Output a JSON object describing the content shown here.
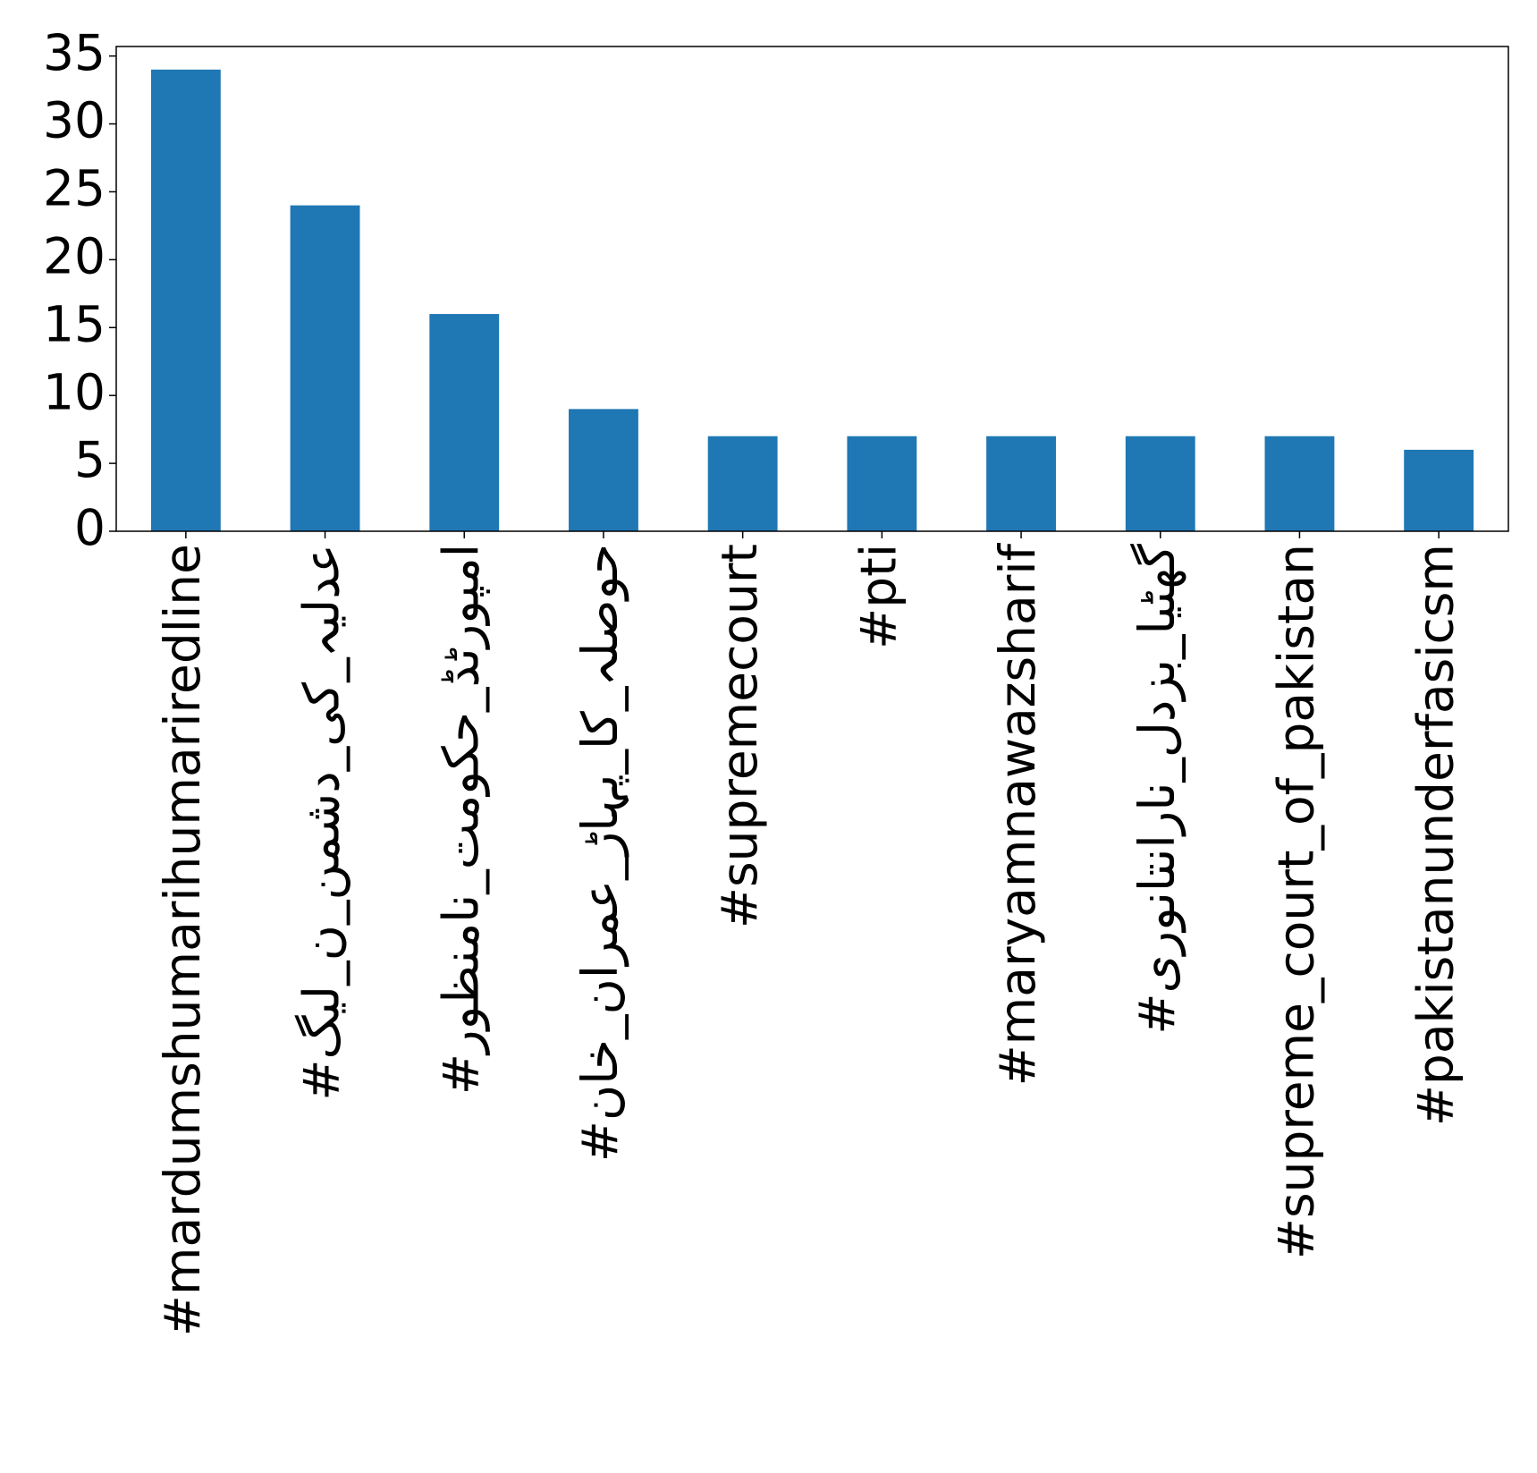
{
  "chart_data": {
    "type": "bar",
    "categories": [
      "#mardumshumarihumariredline",
      "#عدلیہ_کی_دشمن_ن_لیگ",
      "#امپورٹڈ_حکومت_نامنظور",
      "#حوصلہ_کا_پہاڑ_عمران_خان",
      "#supremecourt",
      "#pti",
      "#maryamnawazsharif",
      "#گھٹیا_بزدل_نارانتانوری",
      "#supreme_court_of_pakistan",
      "#pakistanunderfasicsm"
    ],
    "values": [
      34,
      24,
      16,
      9,
      7,
      7,
      7,
      7,
      7,
      6
    ],
    "color": "#1f77b4",
    "ylim": [
      0,
      35.7
    ],
    "yticks": [
      0,
      5,
      10,
      15,
      20,
      25,
      30,
      35
    ],
    "grid": false
  }
}
